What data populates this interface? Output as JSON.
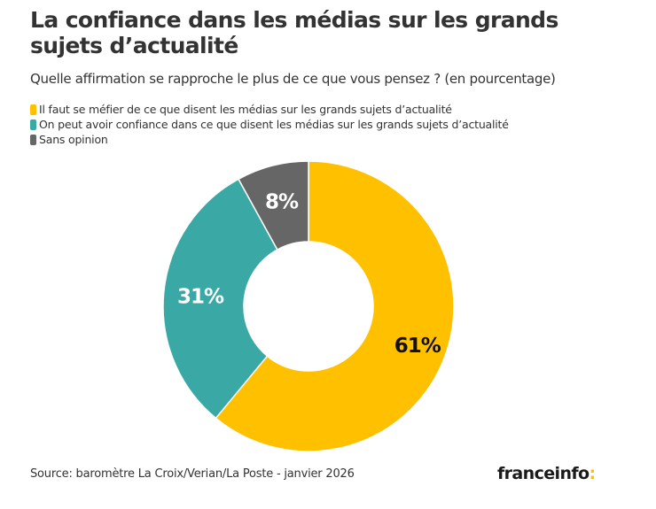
{
  "header": {
    "title": "La confiance dans les médias sur les grands sujets d’actualité",
    "subtitle": "Quelle affirmation se rapproche le plus de ce que vous pensez ? (en pourcentage)"
  },
  "chart_data": {
    "type": "pie",
    "variant": "donut",
    "title": "La confiance dans les médias sur les grands sujets d’actualité",
    "subtitle": "Quelle affirmation se rapproche le plus de ce que vous pensez ? (en pourcentage)",
    "legend_position": "top-left",
    "unit": "%",
    "series": [
      {
        "name": "Il faut se méfier de ce que disent les médias sur les grands sujets d’actualité",
        "value": 61,
        "label": "61%",
        "color": "#FFC000",
        "label_color": "#111111"
      },
      {
        "name": "On peut avoir confiance dans ce que disent les médias sur les grands sujets d’actualité",
        "value": 31,
        "label": "31%",
        "color": "#3AA8A4",
        "label_color": "#ffffff"
      },
      {
        "name": "Sans opinion",
        "value": 8,
        "label": "8%",
        "color": "#666666",
        "label_color": "#ffffff"
      }
    ]
  },
  "footer": {
    "source": "Source: baromètre La Croix/Verian/La Poste - janvier 2026",
    "logo_text": "franceinfo",
    "logo_colon": ":"
  }
}
